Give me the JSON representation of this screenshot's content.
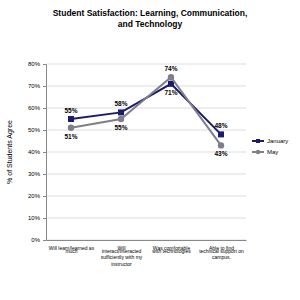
{
  "chart_data": {
    "type": "line",
    "title": "Student Satisfaction: Learning, Communication, and Technology",
    "y_label": "% of Students Agree",
    "categories": [
      "Will learn/learned as much",
      "Will interact/interacted sufficiently with my instructor",
      "Was comfortable with technologies",
      "Able to find technical support on campus."
    ],
    "series": [
      {
        "name": "January",
        "color": "#1c1c6e",
        "marker": "square",
        "values": [
          55,
          58,
          71,
          48
        ],
        "value_labels": [
          "55%",
          "58%",
          "71%",
          "48%"
        ]
      },
      {
        "name": "May",
        "color": "#7f7f8c",
        "marker": "circle",
        "values": [
          51,
          55,
          74,
          43
        ],
        "value_labels": [
          "51%",
          "55%",
          "74%",
          "43%"
        ]
      }
    ],
    "ylim": [
      0,
      80
    ],
    "yticks": [
      {
        "value": 0,
        "label": "0%"
      },
      {
        "value": 10,
        "label": "10%"
      },
      {
        "value": 20,
        "label": "20%"
      },
      {
        "value": 30,
        "label": "30%"
      },
      {
        "value": 40,
        "label": "40%"
      },
      {
        "value": 50,
        "label": "50%"
      },
      {
        "value": 60,
        "label": "60%"
      },
      {
        "value": 70,
        "label": "70%"
      },
      {
        "value": 80,
        "label": "80%"
      }
    ],
    "grid": true,
    "legend": "right",
    "data_labels": true
  }
}
